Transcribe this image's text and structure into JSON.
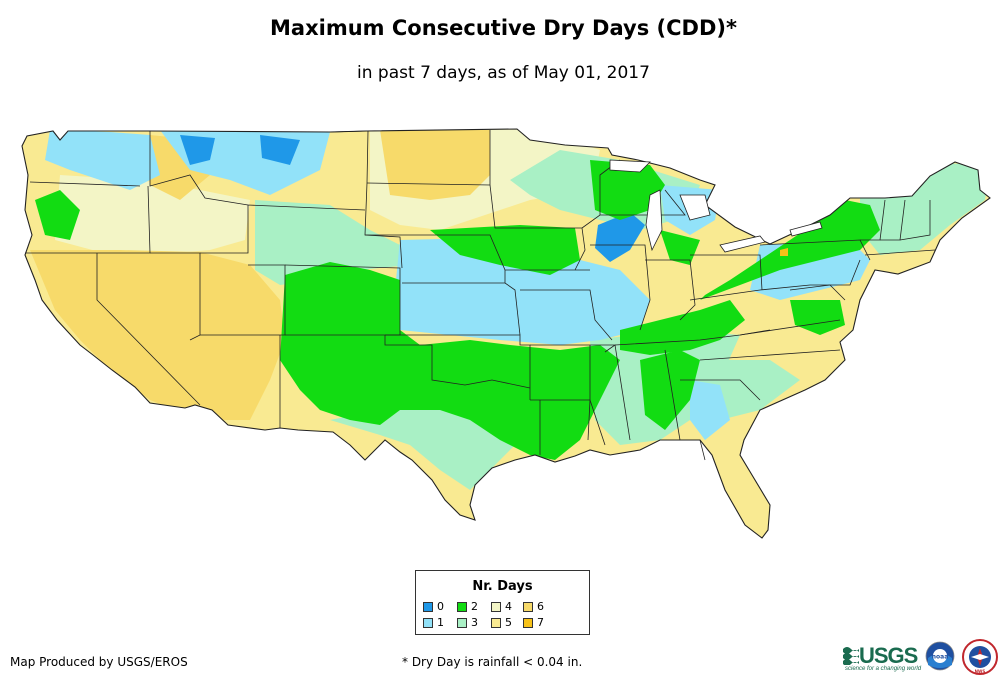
{
  "title": "Maximum Consecutive Dry Days (CDD)*",
  "subtitle": "in past 7 days, as of May 01, 2017",
  "legend": {
    "title": "Nr. Days",
    "items": [
      {
        "label": "0",
        "color": "#1f98e8"
      },
      {
        "label": "1",
        "color": "#92e2f9"
      },
      {
        "label": "2",
        "color": "#12dc12"
      },
      {
        "label": "3",
        "color": "#a9f0c5"
      },
      {
        "label": "4",
        "color": "#f3f5c6"
      },
      {
        "label": "5",
        "color": "#f9ea92"
      },
      {
        "label": "6",
        "color": "#f7da6a"
      },
      {
        "label": "7",
        "color": "#f7c218"
      }
    ]
  },
  "credit": "Map Produced by USGS/EROS",
  "footnote": "* Dry Day is rainfall < 0.04 in.",
  "logos": {
    "usgs": "USGS",
    "usgs_tagline": "science for a changing world",
    "noaa": "noaa",
    "nws": "NWS"
  }
}
